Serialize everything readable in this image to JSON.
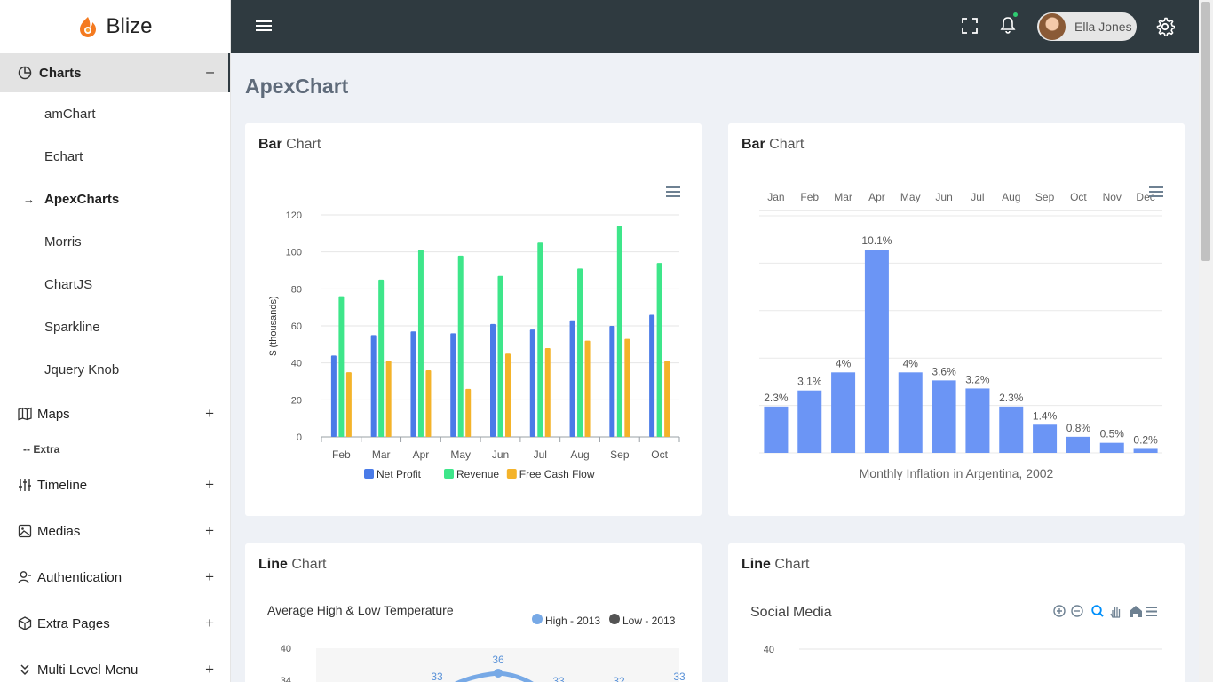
{
  "app": {
    "name": "Blize"
  },
  "sidebar": {
    "open_group": {
      "label": "Charts",
      "toggle": "–"
    },
    "subitems": [
      {
        "label": "amChart"
      },
      {
        "label": "Echart"
      },
      {
        "label": "ApexCharts",
        "active": true,
        "marker": "→"
      },
      {
        "label": "Morris"
      },
      {
        "label": "ChartJS"
      },
      {
        "label": "Sparkline"
      },
      {
        "label": "Jquery Knob"
      }
    ],
    "maps": {
      "label": "Maps",
      "toggle": "+"
    },
    "section": "-- Extra",
    "items": [
      {
        "label": "Timeline",
        "icon": "sliders-icon",
        "toggle": "+"
      },
      {
        "label": "Medias",
        "icon": "image-icon",
        "toggle": "+"
      },
      {
        "label": "Authentication",
        "icon": "user-icon",
        "toggle": "+"
      },
      {
        "label": "Extra Pages",
        "icon": "box-icon",
        "toggle": "+"
      },
      {
        "label": "Multi Level Menu",
        "icon": "chevrons-down-icon",
        "toggle": "+"
      }
    ]
  },
  "topbar": {
    "user_name": "Ella Jones"
  },
  "page": {
    "title": "ApexChart"
  },
  "cards": [
    {
      "title_bold": "Bar",
      "title_rest": " Chart"
    },
    {
      "title_bold": "Bar",
      "title_rest": " Chart"
    },
    {
      "title_bold": "Line",
      "title_rest": " Chart"
    },
    {
      "title_bold": "Line",
      "title_rest": " Chart"
    }
  ],
  "chart_data": [
    {
      "type": "bar",
      "categories": [
        "Feb",
        "Mar",
        "Apr",
        "May",
        "Jun",
        "Jul",
        "Aug",
        "Sep",
        "Oct"
      ],
      "series": [
        {
          "name": "Net Profit",
          "values": [
            44,
            55,
            57,
            56,
            61,
            58,
            63,
            60,
            66
          ],
          "color": "#4a7be8"
        },
        {
          "name": "Revenue",
          "values": [
            76,
            85,
            101,
            98,
            87,
            105,
            91,
            114,
            94
          ],
          "color": "#3ee68a"
        },
        {
          "name": "Free Cash Flow",
          "values": [
            35,
            41,
            36,
            26,
            45,
            48,
            52,
            53,
            41
          ],
          "color": "#f4b32a"
        }
      ],
      "ylabel": "$ (thousands)",
      "ylim": [
        0,
        120
      ],
      "yticks": [
        0,
        20,
        40,
        60,
        80,
        100,
        120
      ],
      "grid": true,
      "legend": "bottom"
    },
    {
      "type": "bar",
      "categories": [
        "Jan",
        "Feb",
        "Mar",
        "Apr",
        "May",
        "Jun",
        "Jul",
        "Aug",
        "Sep",
        "Oct",
        "Nov",
        "Dec"
      ],
      "values": [
        2.3,
        3.1,
        4.0,
        10.1,
        4.0,
        3.6,
        3.2,
        2.3,
        1.4,
        0.8,
        0.5,
        0.2
      ],
      "data_labels": [
        "2.3%",
        "3.1%",
        "4%",
        "10.1%",
        "4%",
        "3.6%",
        "3.2%",
        "2.3%",
        "1.4%",
        "0.8%",
        "0.5%",
        "0.2%"
      ],
      "ylim": [
        0,
        10.1
      ],
      "title": "Monthly Inflation in Argentina, 2002",
      "xaxis_position": "top",
      "color": "#6b95f5",
      "grid": true
    },
    {
      "type": "line",
      "title": "Average High & Low Temperature",
      "series": [
        {
          "name": "High - 2013",
          "color": "#77a9e6"
        },
        {
          "name": "Low - 2013",
          "color": "#545454"
        }
      ],
      "visible_yticks": [
        40,
        34
      ],
      "visible_labels": [
        "33",
        "36",
        "33",
        "32",
        "33"
      ],
      "legend": "top-right"
    },
    {
      "type": "line",
      "title": "Social Media",
      "visible_yticks": [
        40
      ]
    }
  ]
}
